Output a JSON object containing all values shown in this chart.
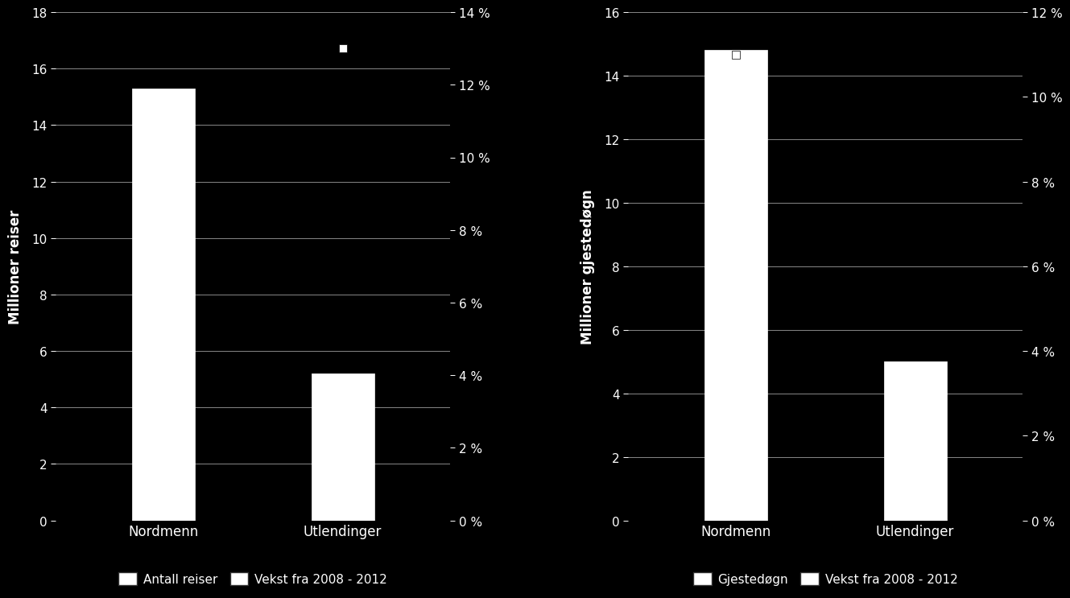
{
  "chart1": {
    "categories": [
      "Nordmenn",
      "Utlendinger"
    ],
    "bar_values": [
      15.3,
      5.2
    ],
    "growth_values": [
      null,
      0.13
    ],
    "ylabel_left": "Millioner reiser",
    "ylim_left": [
      0,
      18
    ],
    "yticks_left": [
      0,
      2,
      4,
      6,
      8,
      10,
      12,
      14,
      16,
      18
    ],
    "ylim_right": [
      0,
      0.14
    ],
    "yticks_right": [
      0.0,
      0.02,
      0.04,
      0.06,
      0.08,
      0.1,
      0.12,
      0.14
    ],
    "ytick_right_labels": [
      "0 %",
      "2 %",
      "4 %",
      "6 %",
      "8 %",
      "10 %",
      "12 %",
      "14 %"
    ],
    "legend_bar": "Antall reiser",
    "legend_marker": "Vekst fra 2008 - 2012"
  },
  "chart2": {
    "categories": [
      "Nordmenn",
      "Utlendinger"
    ],
    "bar_values": [
      14.8,
      5.0
    ],
    "growth_values": [
      0.11,
      null
    ],
    "ylabel_left": "Millioner gjestedøgn",
    "ylim_left": [
      0,
      16
    ],
    "yticks_left": [
      0,
      2,
      4,
      6,
      8,
      10,
      12,
      14,
      16
    ],
    "ylim_right": [
      0,
      0.12
    ],
    "yticks_right": [
      0.0,
      0.02,
      0.04,
      0.06,
      0.08,
      0.1,
      0.12
    ],
    "ytick_right_labels": [
      "0 %",
      "2 %",
      "4 %",
      "6 %",
      "8 %",
      "10 %",
      "12 %"
    ],
    "legend_bar": "Gjestedøgn",
    "legend_marker": "Vekst fra 2008 - 2012"
  },
  "bar_color": "#ffffff",
  "bar_edgecolor": "#ffffff",
  "marker_color": "#ffffff",
  "background_color": "#000000",
  "text_color": "#ffffff",
  "grid_color": "#888888",
  "bar_width": 0.35,
  "marker_size": 7,
  "fontsize_ylabel": 12,
  "fontsize_ticks": 11,
  "fontsize_xticks": 12,
  "fontsize_legend": 11
}
